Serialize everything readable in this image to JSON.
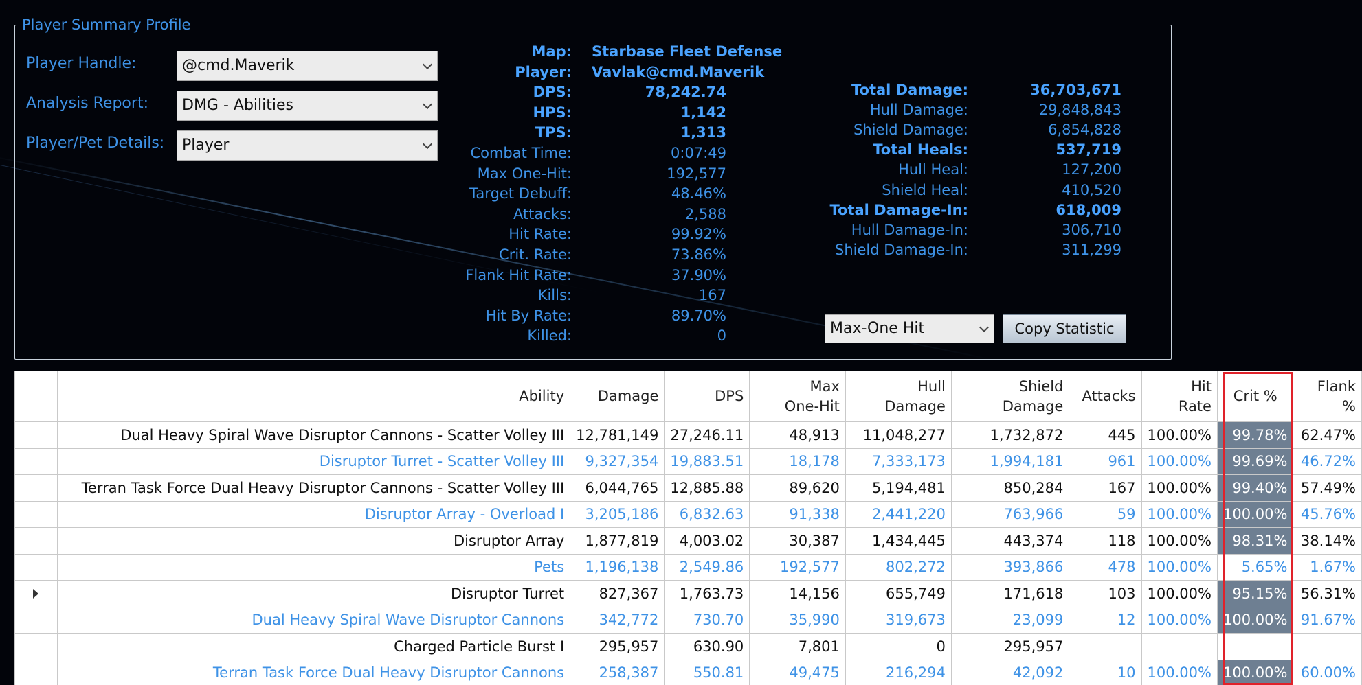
{
  "profile": {
    "legend": "Player Summary Profile",
    "player_handle_label": "Player Handle:",
    "player_handle_value": "@cmd.Maverik",
    "analysis_report_label": "Analysis Report:",
    "analysis_report_value": "DMG - Abilities",
    "details_label": "Player/Pet Details:",
    "details_value": "Player"
  },
  "stats_left": [
    {
      "label": "Map:",
      "value": "Starbase Fleet Defense",
      "bold": true
    },
    {
      "label": "Player:",
      "value": "Vavlak@cmd.Maverik",
      "bold": true
    },
    {
      "label": "DPS:",
      "value": "78,242.74",
      "bold": true
    },
    {
      "label": "HPS:",
      "value": "1,142",
      "bold": true
    },
    {
      "label": "TPS:",
      "value": "1,313",
      "bold": true
    },
    {
      "label": "Combat Time:",
      "value": "0:07:49",
      "bold": false
    },
    {
      "label": "Max One-Hit:",
      "value": "192,577",
      "bold": false
    },
    {
      "label": "Target Debuff:",
      "value": "48.46%",
      "bold": false
    },
    {
      "label": "Attacks:",
      "value": "2,588",
      "bold": false
    },
    {
      "label": "Hit Rate:",
      "value": "99.92%",
      "bold": false
    },
    {
      "label": "Crit. Rate:",
      "value": "73.86%",
      "bold": false
    },
    {
      "label": "Flank Hit Rate:",
      "value": "37.90%",
      "bold": false
    },
    {
      "label": "Kills:",
      "value": "167",
      "bold": false
    },
    {
      "label": "Hit By Rate:",
      "value": "89.70%",
      "bold": false
    },
    {
      "label": "Killed:",
      "value": "0",
      "bold": false
    }
  ],
  "stats_right": [
    {
      "label": "Total Damage:",
      "value": "36,703,671",
      "bold": true
    },
    {
      "label": "Hull Damage:",
      "value": "29,848,843",
      "bold": false
    },
    {
      "label": "Shield Damage:",
      "value": "6,854,828",
      "bold": false
    },
    {
      "label": "Total Heals:",
      "value": "537,719",
      "bold": true
    },
    {
      "label": "Hull Heal:",
      "value": "127,200",
      "bold": false
    },
    {
      "label": "Shield Heal:",
      "value": "410,520",
      "bold": false
    },
    {
      "label": "Total Damage-In:",
      "value": "618,009",
      "bold": true
    },
    {
      "label": "Hull Damage-In:",
      "value": "306,710",
      "bold": false
    },
    {
      "label": "Shield Damage-In:",
      "value": "311,299",
      "bold": false
    }
  ],
  "statistic_select": "Max-One Hit",
  "copy_button": "Copy Statistic",
  "table": {
    "headers": [
      "Ability",
      "Damage",
      "DPS",
      "Max\nOne-Hit",
      "Hull\nDamage",
      "Shield\nDamage",
      "Attacks",
      "Hit\nRate",
      "Crit %",
      "Flank\n%"
    ],
    "rows": [
      [
        "Dual Heavy Spiral Wave Disruptor Cannons - Scatter Volley III",
        "12,781,149",
        "27,246.11",
        "48,913",
        "11,048,277",
        "1,732,872",
        "445",
        "100.00%",
        "99.78%",
        "62.47%"
      ],
      [
        "Disruptor Turret - Scatter Volley III",
        "9,327,354",
        "19,883.51",
        "18,178",
        "7,333,173",
        "1,994,181",
        "961",
        "100.00%",
        "99.69%",
        "46.72%"
      ],
      [
        "Terran Task Force Dual Heavy Disruptor Cannons - Scatter Volley III",
        "6,044,765",
        "12,885.88",
        "89,620",
        "5,194,481",
        "850,284",
        "167",
        "100.00%",
        "99.40%",
        "57.49%"
      ],
      [
        "Disruptor Array - Overload I",
        "3,205,186",
        "6,832.63",
        "91,338",
        "2,441,220",
        "763,966",
        "59",
        "100.00%",
        "100.00%",
        "45.76%"
      ],
      [
        "Disruptor Array",
        "1,877,819",
        "4,003.02",
        "30,387",
        "1,434,445",
        "443,374",
        "118",
        "100.00%",
        "98.31%",
        "38.14%"
      ],
      [
        "Pets",
        "1,196,138",
        "2,549.86",
        "192,577",
        "802,272",
        "393,866",
        "478",
        "100.00%",
        "5.65%",
        "1.67%"
      ],
      [
        "Disruptor Turret",
        "827,367",
        "1,763.73",
        "14,156",
        "655,749",
        "171,618",
        "103",
        "100.00%",
        "95.15%",
        "56.31%"
      ],
      [
        "Dual Heavy Spiral Wave Disruptor Cannons",
        "342,772",
        "730.70",
        "35,990",
        "319,673",
        "23,099",
        "12",
        "100.00%",
        "100.00%",
        "91.67%"
      ],
      [
        "Charged Particle Burst I",
        "295,957",
        "630.90",
        "7,801",
        "0",
        "295,957",
        "",
        "",
        "",
        ""
      ],
      [
        "Terran Task Force Dual Heavy Disruptor Cannons",
        "258,387",
        "550.81",
        "49,475",
        "216,294",
        "42,092",
        "10",
        "100.00%",
        "100.00%",
        "60.00%"
      ]
    ],
    "selected_row": 6,
    "shaded_crit_rows": [
      0,
      1,
      2,
      3,
      4,
      6,
      7,
      9
    ]
  }
}
